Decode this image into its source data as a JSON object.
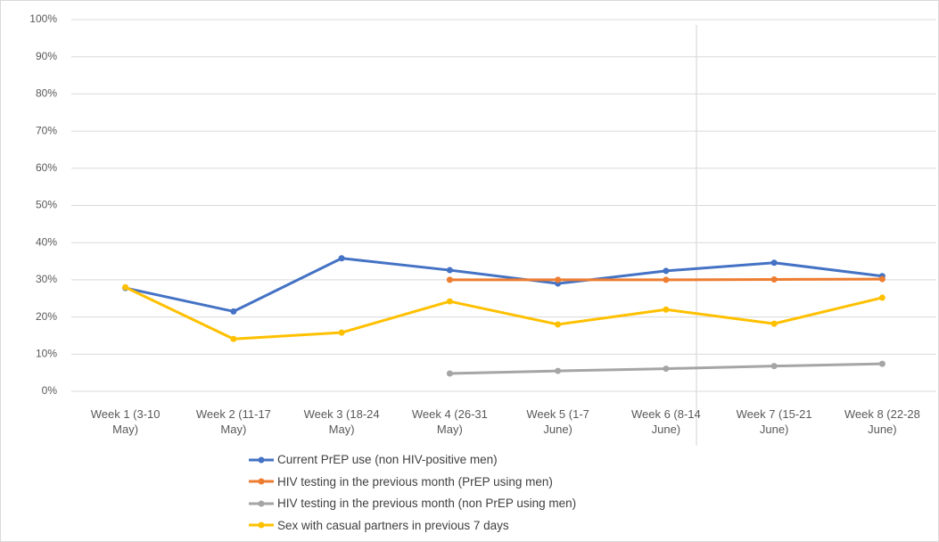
{
  "chart_data": {
    "type": "line",
    "categories": [
      "Week 1 (3-10 May)",
      "Week 2 (11-17 May)",
      "Week 3 (18-24 May)",
      "Week 4 (26-31 May)",
      "Week 5 (1-7 June)",
      "Week 6 (8-14 June)",
      "Week 7 (15-21 June)",
      "Week 8 (22-28 June)"
    ],
    "series": [
      {
        "name": "Current PrEP use (non HIV-positive men)",
        "color": "#4472c4",
        "values": [
          27.8,
          21.5,
          35.8,
          32.6,
          29,
          32.4,
          34.6,
          31
        ]
      },
      {
        "name": "HIV testing in the previous month (PrEP using men)",
        "color": "#ed7d31",
        "values": [
          null,
          null,
          null,
          30,
          30,
          30,
          30.1,
          30.2
        ]
      },
      {
        "name": "HIV testing in the previous month (non PrEP using men)",
        "color": "#a5a5a5",
        "values": [
          null,
          null,
          null,
          4.8,
          5.5,
          6.1,
          6.8,
          7.4
        ]
      },
      {
        "name": "Sex with casual partners in previous 7 days",
        "color": "#ffc000",
        "values": [
          28,
          14.1,
          15.8,
          24.2,
          18,
          22,
          18.2,
          25.2
        ]
      }
    ],
    "ylim": [
      0,
      100
    ],
    "yticks": [
      {
        "value": 0,
        "label": "0%"
      },
      {
        "value": 10,
        "label": "10%"
      },
      {
        "value": 20,
        "label": "20%"
      },
      {
        "value": 30,
        "label": "30%"
      },
      {
        "value": 40,
        "label": "40%"
      },
      {
        "value": 50,
        "label": "50%"
      },
      {
        "value": 60,
        "label": "60%"
      },
      {
        "value": 70,
        "label": "70%"
      },
      {
        "value": 80,
        "label": "80%"
      },
      {
        "value": 90,
        "label": "90%"
      },
      {
        "value": 100,
        "label": "100%"
      }
    ],
    "grid": true,
    "legend": "bottom"
  }
}
